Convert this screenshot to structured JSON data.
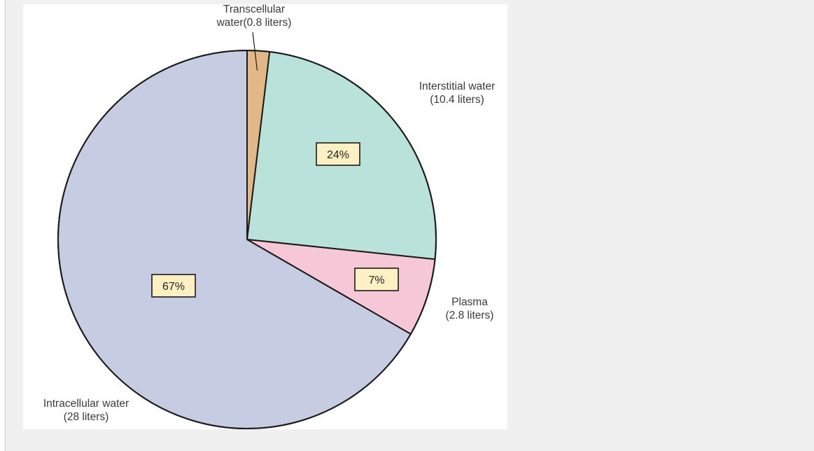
{
  "chart_data": {
    "type": "pie",
    "title": "",
    "slices": [
      {
        "label_lines": [
          "Transcellular",
          "water(0.8 liters)"
        ],
        "liters": 0.8,
        "percent": null,
        "color": "#e3b887"
      },
      {
        "label_lines": [
          "Interstitial water",
          "(10.4 liters)"
        ],
        "liters": 10.4,
        "percent": "24%",
        "color": "#b8e2da"
      },
      {
        "label_lines": [
          "Plasma",
          "(2.8 liters)"
        ],
        "liters": 2.8,
        "percent": "7%",
        "color": "#f6c7d6"
      },
      {
        "label_lines": [
          "Intracellular water",
          "(28 liters)"
        ],
        "liters": 28,
        "percent": "67%",
        "color": "#c6cde3"
      }
    ],
    "start_angle": "12 o'clock",
    "direction": "clockwise",
    "percent_box_color": "#fdf0c2"
  }
}
